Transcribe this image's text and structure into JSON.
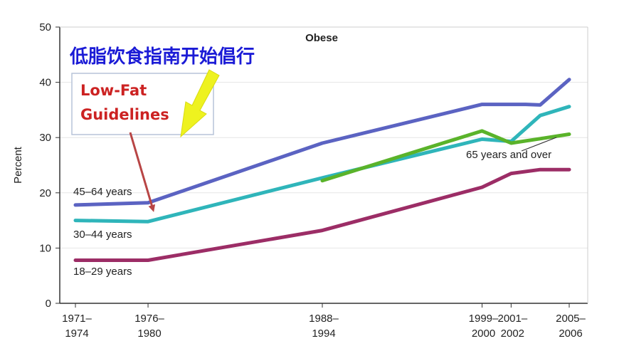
{
  "chart_data": {
    "type": "line",
    "title": "Obese",
    "ylabel": "Percent",
    "xlabel": "",
    "ylim": [
      0,
      50
    ],
    "yticks": [
      0,
      10,
      20,
      30,
      40,
      50
    ],
    "grid": true,
    "x_categories": [
      [
        "1971–",
        "1974"
      ],
      [
        "1976–",
        "1980"
      ],
      [
        "1988–",
        "1994"
      ],
      [
        "1999–",
        "2000"
      ],
      [
        "2001–",
        "2002"
      ],
      [
        "2005–",
        "2006"
      ]
    ],
    "x_positions": [
      0,
      5,
      17,
      28,
      30,
      34
    ],
    "series": [
      {
        "name": "45–64 years",
        "color": "#5b63c2",
        "points": [
          [
            0,
            17.8
          ],
          [
            5,
            18.2
          ],
          [
            17,
            29.0
          ],
          [
            28,
            36.0
          ],
          [
            31,
            36.0
          ],
          [
            32,
            35.9
          ],
          [
            34,
            40.5
          ]
        ]
      },
      {
        "name": "30–44 years",
        "color": "#2fb5ba",
        "points": [
          [
            0,
            15.0
          ],
          [
            5,
            14.8
          ],
          [
            17,
            22.7
          ],
          [
            28,
            29.7
          ],
          [
            30,
            29.3
          ],
          [
            32,
            34.0
          ],
          [
            34,
            35.6
          ]
        ]
      },
      {
        "name": "18–29 years",
        "color": "#9c2d66",
        "points": [
          [
            0,
            7.8
          ],
          [
            5,
            7.8
          ],
          [
            17,
            13.2
          ],
          [
            28,
            21.0
          ],
          [
            30,
            23.5
          ],
          [
            32,
            24.2
          ],
          [
            34,
            24.2
          ]
        ]
      },
      {
        "name": "65 years and over",
        "color": "#5ab32a",
        "points": [
          [
            17,
            22.2
          ],
          [
            28,
            31.2
          ],
          [
            30,
            29.0
          ],
          [
            32,
            29.8
          ],
          [
            34,
            30.6
          ]
        ]
      }
    ],
    "annotations": {
      "chinese": "低脂饮食指南开始倡行",
      "low_fat_line1": "Low-Fat",
      "low_fat_line2": "Guidelines"
    }
  },
  "colors": {
    "axis": "#333333",
    "grid": "#e6e6e6",
    "yellow_arrow": "#eef21f",
    "red_arrow": "#b84545",
    "box_border": "#b7c3d8"
  }
}
